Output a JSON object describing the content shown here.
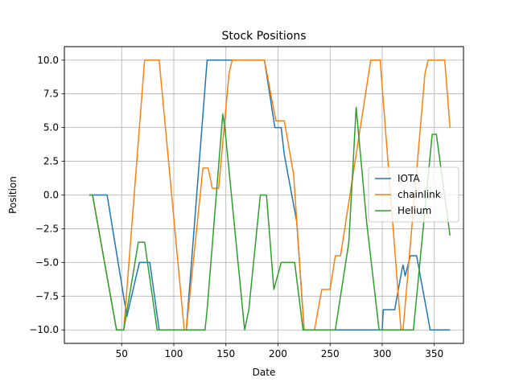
{
  "chart_data": {
    "type": "line",
    "title": "Stock Positions",
    "xlabel": "Date",
    "ylabel": "Position",
    "xlim": [
      -5,
      378
    ],
    "ylim": [
      -11,
      11
    ],
    "xticks": [
      50,
      100,
      150,
      200,
      250,
      300,
      350
    ],
    "yticks": [
      -10.0,
      -7.5,
      -5.0,
      -2.5,
      0.0,
      2.5,
      5.0,
      7.5,
      10.0
    ],
    "xtick_labels": [
      "50",
      "100",
      "150",
      "200",
      "250",
      "300",
      "350"
    ],
    "ytick_labels": [
      "−10.0",
      "−7.5",
      "−5.0",
      "−2.5",
      "0.0",
      "2.5",
      "5.0",
      "7.5",
      "10.0"
    ],
    "grid": true,
    "legend_position": "center-right",
    "series": [
      {
        "name": "IOTA",
        "color": "#1f77b4",
        "points": [
          [
            19,
            0
          ],
          [
            36,
            0
          ],
          [
            55,
            -9
          ],
          [
            67,
            -5
          ],
          [
            77,
            -5
          ],
          [
            86,
            -10
          ],
          [
            100,
            -10
          ],
          [
            112,
            -10
          ],
          [
            132,
            10
          ],
          [
            155,
            10
          ],
          [
            187,
            10
          ],
          [
            197,
            5.0
          ],
          [
            203,
            5.0
          ],
          [
            206,
            3.0
          ],
          [
            218,
            -2
          ],
          [
            225,
            -10
          ],
          [
            300,
            -10
          ],
          [
            301,
            -8.5
          ],
          [
            312,
            -8.5
          ],
          [
            319,
            -5.5
          ],
          [
            320,
            -5.2
          ],
          [
            322,
            -6
          ],
          [
            327,
            -4.5
          ],
          [
            333,
            -4.5
          ],
          [
            346,
            -10
          ],
          [
            365,
            -10
          ]
        ]
      },
      {
        "name": "chainlink",
        "color": "#ff7f0e",
        "points": [
          [
            19,
            0
          ],
          [
            22,
            0
          ],
          [
            45,
            -10
          ],
          [
            52,
            -10
          ],
          [
            72,
            10
          ],
          [
            86,
            10
          ],
          [
            110,
            -10
          ],
          [
            112,
            -10
          ],
          [
            128,
            2
          ],
          [
            133,
            2
          ],
          [
            137,
            0.5
          ],
          [
            143,
            0.5
          ],
          [
            153,
            9
          ],
          [
            156,
            10
          ],
          [
            187,
            10
          ],
          [
            198,
            5.5
          ],
          [
            206,
            5.5
          ],
          [
            215,
            1.5
          ],
          [
            225,
            -10
          ],
          [
            235,
            -10
          ],
          [
            242,
            -7
          ],
          [
            250,
            -7
          ],
          [
            255,
            -4.5
          ],
          [
            260,
            -4.5
          ],
          [
            289,
            10
          ],
          [
            298,
            10
          ],
          [
            318,
            -10
          ],
          [
            320,
            -10
          ],
          [
            341,
            9
          ],
          [
            344,
            10
          ],
          [
            360,
            10
          ],
          [
            365,
            5.0
          ]
        ]
      },
      {
        "name": "Helium",
        "color": "#2ca02c",
        "points": [
          [
            19,
            0
          ],
          [
            22,
            0
          ],
          [
            45,
            -10
          ],
          [
            52,
            -10
          ],
          [
            66,
            -3.5
          ],
          [
            72,
            -3.5
          ],
          [
            84,
            -10
          ],
          [
            100,
            -10
          ],
          [
            130,
            -10
          ],
          [
            132,
            -8.5
          ],
          [
            147,
            6.0
          ],
          [
            149,
            5.0
          ],
          [
            168,
            -10
          ],
          [
            172,
            -8.5
          ],
          [
            183,
            0
          ],
          [
            189,
            0
          ],
          [
            196,
            -7
          ],
          [
            203,
            -5
          ],
          [
            216,
            -5
          ],
          [
            224,
            -10
          ],
          [
            255,
            -10
          ],
          [
            268,
            -3.5
          ],
          [
            275,
            6.5
          ],
          [
            285,
            -2
          ],
          [
            297,
            -10
          ],
          [
            330,
            -10
          ],
          [
            348,
            4.5
          ],
          [
            352,
            4.5
          ],
          [
            365,
            -3
          ]
        ]
      }
    ]
  }
}
